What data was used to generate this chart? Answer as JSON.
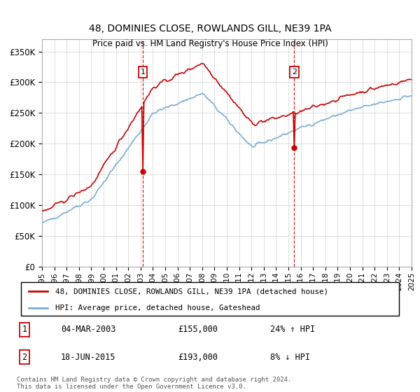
{
  "title": "48, DOMINIES CLOSE, ROWLANDS GILL, NE39 1PA",
  "subtitle": "Price paid vs. HM Land Registry's House Price Index (HPI)",
  "legend_line1": "48, DOMINIES CLOSE, ROWLANDS GILL, NE39 1PA (detached house)",
  "legend_line2": "HPI: Average price, detached house, Gateshead",
  "red_color": "#cc0000",
  "blue_color": "#7aadd4",
  "annotation1_label": "1",
  "annotation1_date": "04-MAR-2003",
  "annotation1_price": "£155,000",
  "annotation1_hpi": "24% ↑ HPI",
  "annotation2_label": "2",
  "annotation2_date": "18-JUN-2015",
  "annotation2_price": "£193,000",
  "annotation2_hpi": "8% ↓ HPI",
  "footnote1": "Contains HM Land Registry data © Crown copyright and database right 2024.",
  "footnote2": "This data is licensed under the Open Government Licence v3.0.",
  "ylim_max": 370000,
  "ylim_min": 0,
  "start_year": 1995,
  "end_year": 2025
}
